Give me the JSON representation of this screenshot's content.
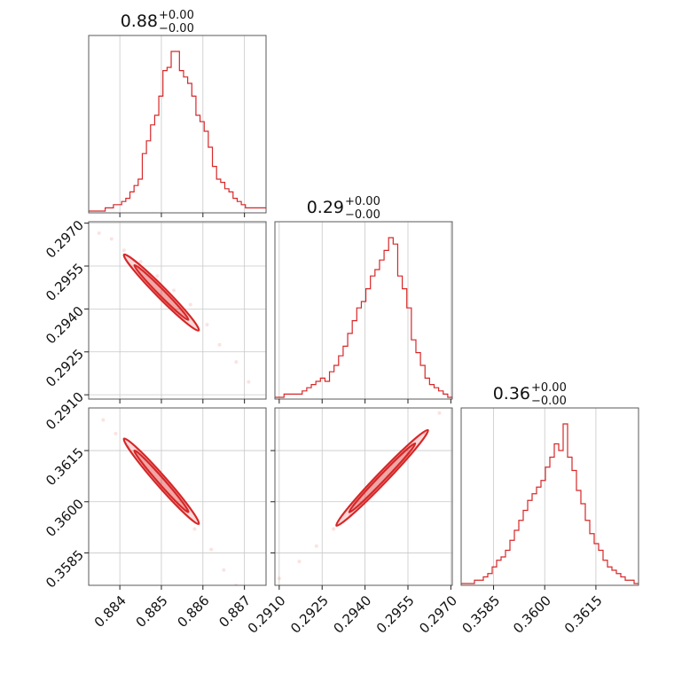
{
  "chart_data": {
    "type": "corner",
    "parameters": [
      {
        "title_value": "0.88",
        "title_plus": "+0.00",
        "title_minus": "−0.00",
        "ticks": [
          0.884,
          0.885,
          0.886,
          0.887
        ],
        "tick_labels": [
          "0.884",
          "0.885",
          "0.886",
          "0.887"
        ],
        "range": [
          0.88325,
          0.88752
        ],
        "hist": [
          0,
          0,
          0,
          0,
          1,
          1,
          2,
          2,
          3,
          4,
          6,
          8,
          10,
          18,
          22,
          27,
          30,
          36,
          44,
          45,
          50,
          50,
          44,
          42,
          40,
          36,
          30,
          28,
          25,
          20,
          14,
          10,
          9,
          7,
          6,
          4,
          3,
          2,
          1,
          1,
          1,
          1,
          1
        ]
      },
      {
        "title_value": "0.29",
        "title_plus": "+0.00",
        "title_minus": "−0.00",
        "ticks": [
          0.291,
          0.2925,
          0.294,
          0.2955,
          0.297
        ],
        "tick_labels": [
          "0.2910",
          "0.2925",
          "0.2940",
          "0.2955",
          "0.2970"
        ],
        "range": [
          0.29085,
          0.29705
        ],
        "hist": [
          0,
          0,
          1,
          1,
          1,
          1,
          2,
          3,
          4,
          5,
          6,
          5,
          8,
          10,
          13,
          16,
          20,
          24,
          28,
          30,
          34,
          38,
          40,
          43,
          46,
          50,
          48,
          38,
          34,
          28,
          18,
          14,
          10,
          6,
          4,
          3,
          2,
          1,
          0
        ]
      },
      {
        "title_value": "0.36",
        "title_plus": "+0.00",
        "title_minus": "−0.00",
        "ticks": [
          0.3585,
          0.36,
          0.3615
        ],
        "tick_labels": [
          "0.3585",
          "0.3600",
          "0.3615"
        ],
        "range": [
          0.35755,
          0.36275
        ],
        "hist": [
          0,
          0,
          0,
          1,
          1,
          2,
          3,
          5,
          7,
          8,
          10,
          13,
          16,
          19,
          22,
          25,
          27,
          29,
          31,
          35,
          38,
          42,
          40,
          48,
          38,
          34,
          28,
          24,
          19,
          15,
          12,
          10,
          7,
          5,
          4,
          3,
          2,
          1,
          1,
          0
        ]
      }
    ],
    "pair_samples": {
      "p0_p1": [
        [
          0.8832,
          0.29685
        ],
        [
          0.8835,
          0.29665
        ],
        [
          0.8838,
          0.29645
        ],
        [
          0.8841,
          0.29605
        ],
        [
          0.8845,
          0.29565
        ],
        [
          0.8849,
          0.29515
        ],
        [
          0.8853,
          0.29465
        ],
        [
          0.8857,
          0.29415
        ],
        [
          0.8861,
          0.29345
        ],
        [
          0.8864,
          0.29275
        ],
        [
          0.8868,
          0.29215
        ],
        [
          0.8871,
          0.29145
        ]
      ],
      "p0_p2": [
        [
          0.8833,
          0.363
        ],
        [
          0.8836,
          0.3624
        ],
        [
          0.8839,
          0.362
        ],
        [
          0.8842,
          0.3616
        ],
        [
          0.8846,
          0.361
        ],
        [
          0.885,
          0.3604
        ],
        [
          0.8854,
          0.3599
        ],
        [
          0.8858,
          0.3592
        ],
        [
          0.8862,
          0.3586
        ],
        [
          0.8865,
          0.358
        ],
        [
          0.8868,
          0.35755
        ]
      ],
      "p1_p2": [
        [
          0.291,
          0.35775
        ],
        [
          0.2917,
          0.35825
        ],
        [
          0.2923,
          0.3587
        ],
        [
          0.2929,
          0.3592
        ],
        [
          0.2935,
          0.3596
        ],
        [
          0.2942,
          0.3602
        ],
        [
          0.2949,
          0.3608
        ],
        [
          0.2955,
          0.3614
        ],
        [
          0.2961,
          0.362
        ],
        [
          0.2966,
          0.3626
        ],
        [
          0.2969,
          0.363
        ]
      ]
    },
    "contours": {
      "p0_p1": {
        "x": [
          0.8841,
          0.8859
        ],
        "y": [
          0.2959,
          0.29325
        ],
        "width_outer": 0.0001,
        "width_inner": 5e-05
      },
      "p0_p2": {
        "x": [
          0.8841,
          0.8859
        ],
        "y": [
          0.36185,
          0.35935
        ],
        "width_outer": 0.0001,
        "width_inner": 5e-05
      },
      "p1_p2": {
        "x": [
          0.293,
          0.2962
        ],
        "y": [
          0.3593,
          0.3621
        ],
        "width_outer": 0.0005,
        "width_inner": 0.00025
      }
    },
    "grid": true,
    "color": "#d62728"
  }
}
